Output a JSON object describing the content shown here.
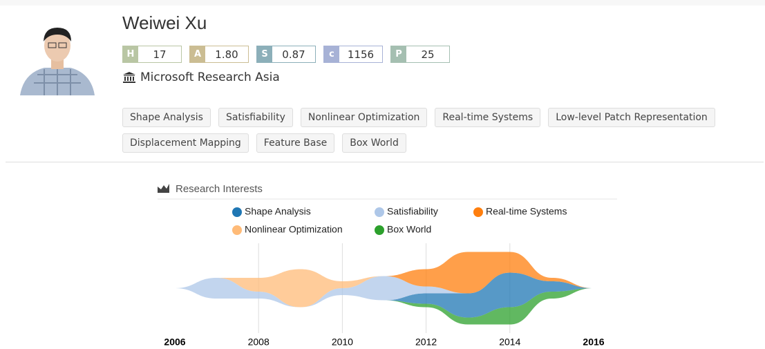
{
  "profile": {
    "name": "Weiwei Xu",
    "indices": [
      {
        "key": "H",
        "value": "17",
        "color": "#b9c6a4"
      },
      {
        "key": "A",
        "value": "1.80",
        "color": "#cbbd93"
      },
      {
        "key": "S",
        "value": "0.87",
        "color": "#8cafb9"
      },
      {
        "key": "c",
        "value": "1156",
        "color": "#a7b2d6"
      },
      {
        "key": "P",
        "value": "25",
        "color": "#a5bfb1"
      }
    ],
    "affiliation": "Microsoft Research Asia",
    "tags": [
      "Shape Analysis",
      "Satisfiability",
      "Nonlinear Optimization",
      "Real-time Systems",
      "Low-level Patch Representation",
      "Displacement Mapping",
      "Feature Base",
      "Box World"
    ]
  },
  "chart_data": {
    "type": "streamgraph",
    "title": "Research Interests",
    "x": [
      2006,
      2007,
      2008,
      2009,
      2010,
      2011,
      2012,
      2013,
      2014,
      2015,
      2016
    ],
    "xlim": [
      2006,
      2016
    ],
    "xticks": [
      2006,
      2008,
      2010,
      2012,
      2014,
      2016
    ],
    "series": [
      {
        "name": "Shape Analysis",
        "color": "#1f77b4",
        "values": [
          0,
          0,
          0,
          0,
          0,
          0,
          15,
          35,
          50,
          15,
          0
        ]
      },
      {
        "name": "Satisfiability",
        "color": "#aec7e8",
        "values": [
          0,
          30,
          10,
          0,
          10,
          35,
          10,
          0,
          0,
          0,
          0
        ]
      },
      {
        "name": "Real-time Systems",
        "color": "#ff7f0e",
        "values": [
          0,
          0,
          0,
          0,
          0,
          0,
          25,
          60,
          30,
          5,
          0
        ]
      },
      {
        "name": "Nonlinear Optimization",
        "color": "#ffbb78",
        "values": [
          0,
          0,
          20,
          55,
          10,
          0,
          0,
          0,
          0,
          0,
          0
        ]
      },
      {
        "name": "Box World",
        "color": "#2ca02c",
        "values": [
          0,
          0,
          0,
          0,
          0,
          0,
          5,
          10,
          25,
          10,
          0
        ]
      }
    ]
  }
}
